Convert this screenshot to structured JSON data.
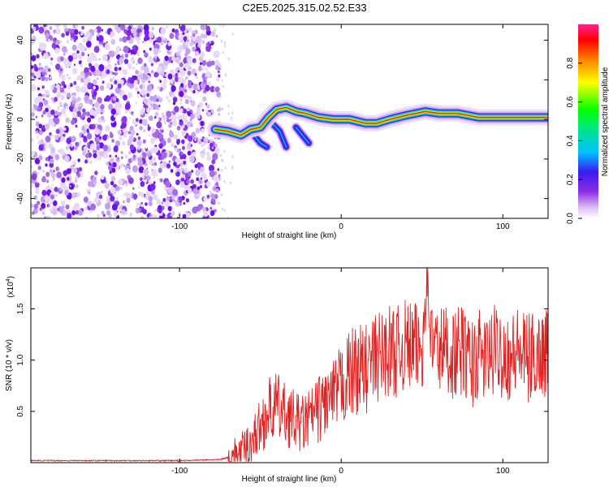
{
  "title": "C2E5.2025.315.02.52.E33",
  "colorbar": {
    "label": "Normalized spectral amplitude",
    "ticks": [
      "0.0",
      "0.2",
      "0.4",
      "0.6",
      "0.8"
    ],
    "tick_values": [
      0.0,
      0.2,
      0.4,
      0.6,
      0.8
    ],
    "range": [
      0,
      1
    ]
  },
  "chart_data": [
    {
      "type": "heatmap",
      "xlabel": "Height of straight line (km)",
      "ylabel": "Frequency (Hz)",
      "xlim": [
        -192,
        128
      ],
      "ylim": [
        -50,
        48
      ],
      "xticks": [
        -100,
        0,
        100
      ],
      "yticks": [
        -40,
        -20,
        0,
        20,
        40
      ],
      "noise_region_x": [
        -192,
        -75
      ],
      "ridge": {
        "x": [
          -78,
          -70,
          -62,
          -56,
          -50,
          -45,
          -40,
          -34,
          -28,
          -22,
          -14,
          -5,
          5,
          15,
          22,
          30,
          40,
          52,
          60,
          72,
          85,
          100,
          128
        ],
        "y": [
          -5,
          -6,
          -8,
          -5,
          -4,
          1,
          5,
          6,
          4,
          3,
          1,
          0,
          0,
          -2,
          -2,
          0,
          2,
          4,
          3,
          3,
          1,
          1,
          1
        ]
      },
      "branches": [
        {
          "x": [
            -54,
            -50,
            -46
          ],
          "y": [
            -8,
            -12,
            -14
          ]
        },
        {
          "x": [
            -44,
            -38,
            -34
          ],
          "y": [
            -1,
            -6,
            -14
          ]
        },
        {
          "x": [
            -28,
            -24,
            -20
          ],
          "y": [
            -4,
            -8,
            -12
          ]
        }
      ]
    },
    {
      "type": "line",
      "xlabel": "Height of straight line (km)",
      "ylabel": "SNR (10 * v/v)",
      "y_multiplier": "(x10",
      "y_multiplier_exp": "4",
      "y_multiplier_close": ")",
      "xlim": [
        -192,
        128
      ],
      "ylim": [
        0,
        1.9
      ],
      "xticks": [
        -100,
        0,
        100
      ],
      "yticks": [
        0.5,
        1.0,
        1.5
      ],
      "ytick_labels": [
        "0.5",
        "1.0",
        "1.5"
      ],
      "series": [
        {
          "color": "#dd2222",
          "x": [
            -192,
            -150,
            -100,
            -75,
            -68,
            -62,
            -56,
            -50,
            -45,
            -40,
            -36,
            -32,
            -28,
            -24,
            -20,
            -15,
            -10,
            -5,
            0,
            5,
            10,
            15,
            20,
            25,
            30,
            35,
            40,
            45,
            50,
            53,
            56,
            60,
            65,
            70,
            75,
            80,
            85,
            90,
            95,
            100,
            105,
            110,
            115,
            120,
            125,
            128
          ],
          "y": [
            0.02,
            0.02,
            0.02,
            0.03,
            0.06,
            0.1,
            0.2,
            0.35,
            0.5,
            0.55,
            0.48,
            0.45,
            0.4,
            0.38,
            0.42,
            0.5,
            0.6,
            0.62,
            0.75,
            0.85,
            0.92,
            0.9,
            1.0,
            1.05,
            1.1,
            1.08,
            1.15,
            1.12,
            1.1,
            1.9,
            1.15,
            1.1,
            1.12,
            1.05,
            1.1,
            0.95,
            1.05,
            1.0,
            1.1,
            1.08,
            1.02,
            1.1,
            1.0,
            1.05,
            1.08,
            1.1
          ]
        }
      ]
    }
  ]
}
